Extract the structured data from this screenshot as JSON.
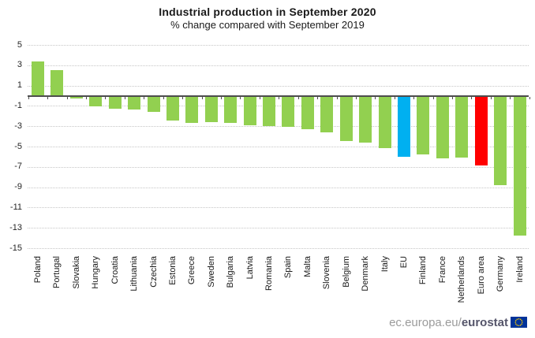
{
  "chart": {
    "title": "Industrial production in September 2020",
    "subtitle": "% change compared with September 2019"
  },
  "chart_data": {
    "type": "bar",
    "title": "Industrial production in September 2020",
    "subtitle": "% change compared with September 2019",
    "categories": [
      "Poland",
      "Portugal",
      "Slovakia",
      "Hungary",
      "Croatia",
      "Lithuania",
      "Czechia",
      "Estonia",
      "Greece",
      "Sweden",
      "Bulgaria",
      "Latvia",
      "Romania",
      "Spain",
      "Malta",
      "Slovenia",
      "Belgium",
      "Denmark",
      "Italy",
      "EU",
      "Finland",
      "France",
      "Netherlands",
      "Euro area",
      "Germany",
      "Ireland"
    ],
    "values": [
      3.4,
      2.5,
      -0.2,
      -1.0,
      -1.2,
      -1.3,
      -1.5,
      -2.4,
      -2.6,
      -2.5,
      -2.6,
      -2.8,
      -2.9,
      -3.0,
      -3.2,
      -3.5,
      -4.4,
      -4.5,
      -5.1,
      -5.9,
      -5.7,
      -6.1,
      -6.0,
      -6.8,
      -8.7,
      -13.7
    ],
    "highlighted_bars": {
      "EU": "#00B0F0",
      "Euro area": "#FF0000"
    },
    "bar_default_color": "#92D050",
    "xlabel": "",
    "ylabel": "",
    "ylim": [
      -15,
      5
    ],
    "yticks": [
      5,
      3,
      1,
      -1,
      -3,
      -5,
      -7,
      -9,
      -11,
      -13,
      -15
    ],
    "grid": "horizontal dotted",
    "legend": "none",
    "unit": "%"
  },
  "colors": {
    "bar_green": "#92D050",
    "bar_blue": "#00B0F0",
    "bar_red": "#FF0000",
    "axis": "#4d4d4d",
    "gridline": "#c6c6c6",
    "flag_blue": "#003399",
    "flag_stars": "#FFCC00"
  },
  "footer": {
    "url_prefix": "ec.europa.eu/",
    "url_bold": "eurostat"
  }
}
